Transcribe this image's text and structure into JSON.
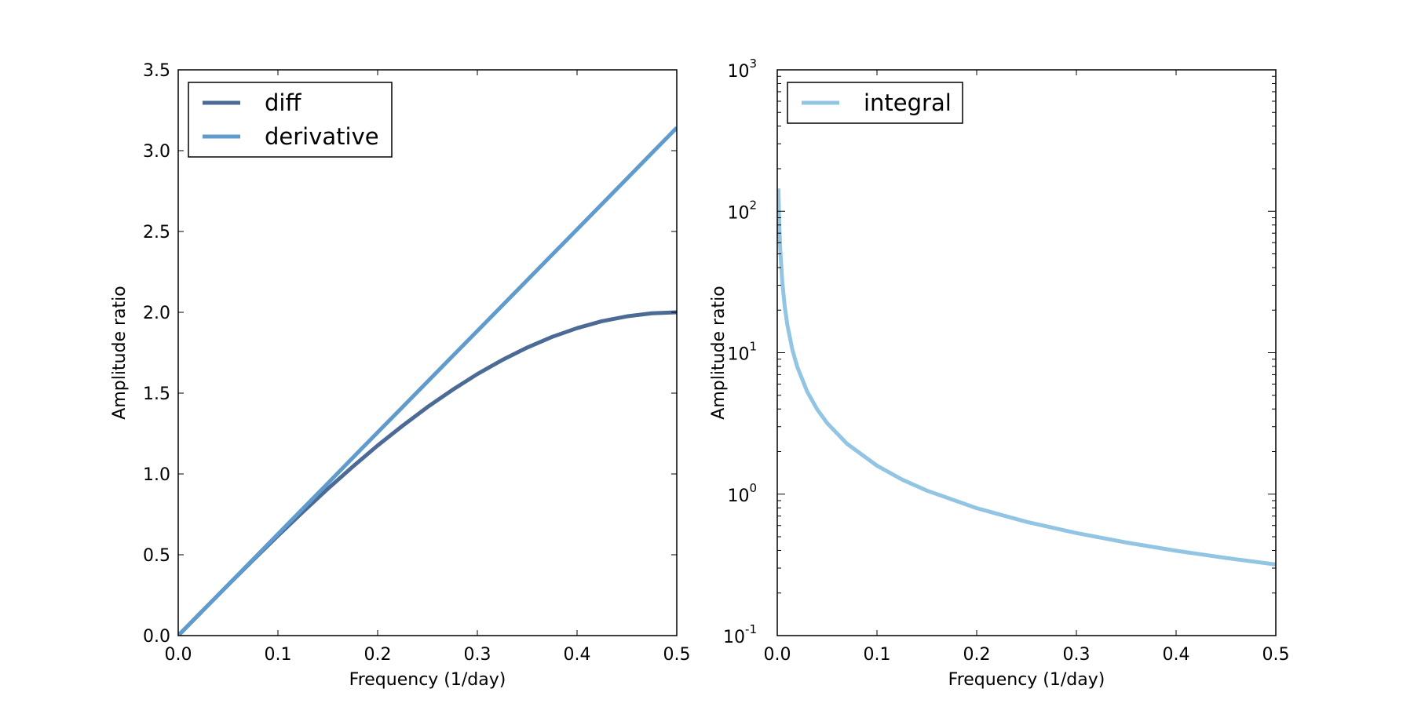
{
  "chart_data": [
    {
      "type": "line",
      "title": "",
      "xlabel": "Frequency (1/day)",
      "ylabel": "Amplitude ratio",
      "xlim": [
        0.0,
        0.5
      ],
      "ylim": [
        0.0,
        3.5
      ],
      "yscale": "linear",
      "xticks": [
        "0.0",
        "0.1",
        "0.2",
        "0.3",
        "0.4",
        "0.5"
      ],
      "yticks": [
        "0.0",
        "0.5",
        "1.0",
        "1.5",
        "2.0",
        "2.5",
        "3.0",
        "3.5"
      ],
      "legend_position": "top-left",
      "grid": false,
      "x": [
        0.0,
        0.025,
        0.05,
        0.075,
        0.1,
        0.125,
        0.15,
        0.175,
        0.2,
        0.225,
        0.25,
        0.275,
        0.3,
        0.325,
        0.35,
        0.375,
        0.4,
        0.425,
        0.45,
        0.475,
        0.5
      ],
      "series": [
        {
          "name": "diff",
          "color": "#4c6a96",
          "values": [
            0.0,
            0.157,
            0.313,
            0.467,
            0.618,
            0.765,
            0.908,
            1.045,
            1.176,
            1.298,
            1.414,
            1.52,
            1.618,
            1.705,
            1.782,
            1.848,
            1.902,
            1.945,
            1.975,
            1.994,
            2.0
          ]
        },
        {
          "name": "derivative",
          "color": "#5f9bcc",
          "values": [
            0.0,
            0.157,
            0.314,
            0.471,
            0.628,
            0.785,
            0.942,
            1.1,
            1.257,
            1.414,
            1.571,
            1.728,
            1.885,
            2.042,
            2.199,
            2.356,
            2.513,
            2.67,
            2.827,
            2.985,
            3.142
          ]
        }
      ]
    },
    {
      "type": "line",
      "title": "",
      "xlabel": "Frequency (1/day)",
      "ylabel": "Amplitude ratio",
      "xlim": [
        0.0,
        0.5
      ],
      "ylim": [
        0.1,
        1000
      ],
      "yscale": "log",
      "xticks": [
        "0.0",
        "0.1",
        "0.2",
        "0.3",
        "0.4",
        "0.5"
      ],
      "yticks": [
        {
          "base": "10",
          "exp": "-1",
          "value": 0.1
        },
        {
          "base": "10",
          "exp": "0",
          "value": 1
        },
        {
          "base": "10",
          "exp": "1",
          "value": 10
        },
        {
          "base": "10",
          "exp": "2",
          "value": 100
        },
        {
          "base": "10",
          "exp": "3",
          "value": 1000
        }
      ],
      "legend_position": "top-left",
      "grid": false,
      "x": [
        0.0011,
        0.002,
        0.003,
        0.005,
        0.0075,
        0.01,
        0.015,
        0.02,
        0.03,
        0.04,
        0.05,
        0.07,
        0.1,
        0.125,
        0.15,
        0.2,
        0.25,
        0.3,
        0.35,
        0.4,
        0.45,
        0.5
      ],
      "series": [
        {
          "name": "integral",
          "color": "#92c5e3",
          "values": [
            144.7,
            79.6,
            53.1,
            31.8,
            21.2,
            15.9,
            10.6,
            7.96,
            5.31,
            3.98,
            3.18,
            2.27,
            1.59,
            1.27,
            1.06,
            0.796,
            0.637,
            0.531,
            0.455,
            0.398,
            0.354,
            0.318
          ]
        }
      ]
    }
  ]
}
